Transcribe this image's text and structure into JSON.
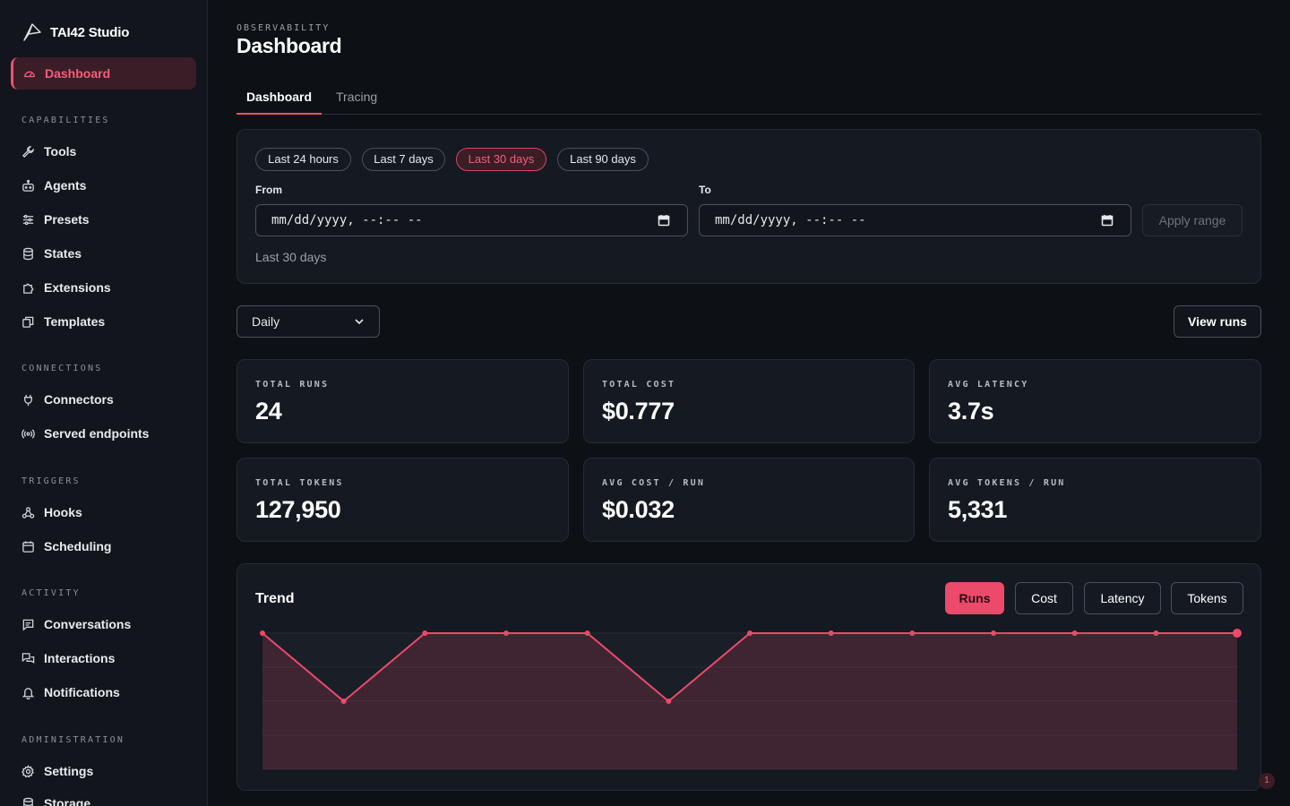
{
  "brand": {
    "name": "TAI42 Studio",
    "icon": "app-logo-icon"
  },
  "sidebar": {
    "active": {
      "label": "Dashboard",
      "icon": "dashboard-icon"
    },
    "sections": [
      {
        "title": "CAPABILITIES",
        "items": [
          {
            "label": "Tools",
            "icon": "wrench-icon"
          },
          {
            "label": "Agents",
            "icon": "robot-icon"
          },
          {
            "label": "Presets",
            "icon": "sliders-icon"
          },
          {
            "label": "States",
            "icon": "database-icon"
          },
          {
            "label": "Extensions",
            "icon": "puzzle-icon"
          },
          {
            "label": "Templates",
            "icon": "copy-icon"
          }
        ]
      },
      {
        "title": "CONNECTIONS",
        "items": [
          {
            "label": "Connectors",
            "icon": "plug-icon"
          },
          {
            "label": "Served endpoints",
            "icon": "broadcast-icon"
          }
        ]
      },
      {
        "title": "TRIGGERS",
        "items": [
          {
            "label": "Hooks",
            "icon": "webhook-icon"
          },
          {
            "label": "Scheduling",
            "icon": "calendar-icon"
          }
        ]
      },
      {
        "title": "ACTIVITY",
        "items": [
          {
            "label": "Conversations",
            "icon": "chat-icon"
          },
          {
            "label": "Interactions",
            "icon": "chats-icon"
          },
          {
            "label": "Notifications",
            "icon": "bell-icon"
          }
        ]
      },
      {
        "title": "ADMINISTRATION",
        "items": [
          {
            "label": "Settings",
            "icon": "gear-icon"
          },
          {
            "label": "Storage",
            "icon": "database-icon"
          }
        ]
      }
    ]
  },
  "header": {
    "eyebrow": "OBSERVABILITY",
    "title": "Dashboard"
  },
  "tabs": [
    {
      "label": "Dashboard",
      "active": true
    },
    {
      "label": "Tracing",
      "active": false
    }
  ],
  "range": {
    "presets": [
      "Last 24 hours",
      "Last 7 days",
      "Last 30 days",
      "Last 90 days"
    ],
    "selected": "Last 30 days",
    "from_label": "From",
    "to_label": "To",
    "from_placeholder": "mm/dd/yyyy, --:-- --",
    "to_placeholder": "mm/dd/yyyy, --:-- --",
    "apply_label": "Apply range",
    "note": "Last 30 days"
  },
  "granularity": {
    "value": "Daily"
  },
  "view_runs_label": "View runs",
  "stats": [
    {
      "label": "TOTAL RUNS",
      "value": "24"
    },
    {
      "label": "TOTAL COST",
      "value": "$0.777"
    },
    {
      "label": "AVG LATENCY",
      "value": "3.7s"
    },
    {
      "label": "TOTAL TOKENS",
      "value": "127,950"
    },
    {
      "label": "AVG COST / RUN",
      "value": "$0.032"
    },
    {
      "label": "AVG TOKENS / RUN",
      "value": "5,331"
    }
  ],
  "trend": {
    "title": "Trend",
    "metrics": [
      "Runs",
      "Cost",
      "Latency",
      "Tokens"
    ],
    "selected_metric": "Runs"
  },
  "chart_data": {
    "type": "area",
    "series": [
      {
        "values": [
          2,
          1,
          2,
          2,
          2,
          1,
          2,
          2,
          2,
          2,
          2,
          2,
          2
        ]
      }
    ],
    "ylim": [
      0,
      2
    ],
    "grid": true,
    "color": "#ec4a6a"
  },
  "notification_badge": "1",
  "colors": {
    "accent": "#ec4a6a",
    "background": "#0d1015",
    "panel": "#151921"
  }
}
